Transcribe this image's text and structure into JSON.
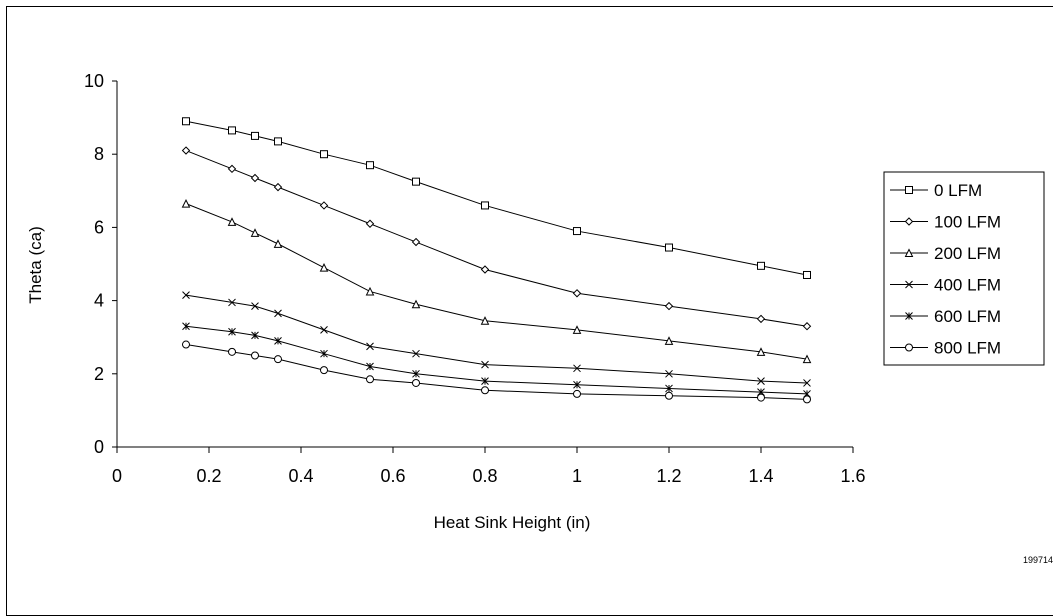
{
  "chart_data": {
    "type": "line",
    "xlabel": "Heat Sink Height (in)",
    "ylabel": "Theta (ca)",
    "xlim": [
      0,
      1.6
    ],
    "ylim": [
      0,
      10
    ],
    "x_ticks": [
      "0",
      "0.2",
      "0.4",
      "0.6",
      "0.8",
      "1",
      "1.2",
      "1.4",
      "1.6"
    ],
    "y_ticks": [
      "0",
      "2",
      "4",
      "6",
      "8",
      "10"
    ],
    "grid": false,
    "legend_position": "right",
    "x": [
      0.15,
      0.25,
      0.3,
      0.35,
      0.45,
      0.55,
      0.65,
      0.8,
      1.0,
      1.2,
      1.4,
      1.5
    ],
    "series": [
      {
        "name": "0 LFM",
        "marker": "square",
        "values": [
          8.9,
          8.65,
          8.5,
          8.35,
          8.0,
          7.7,
          7.25,
          6.6,
          5.9,
          5.45,
          4.95,
          4.7
        ]
      },
      {
        "name": "100 LFM",
        "marker": "diamond",
        "values": [
          8.1,
          7.6,
          7.35,
          7.1,
          6.6,
          6.1,
          5.6,
          4.85,
          4.2,
          3.85,
          3.5,
          3.3
        ]
      },
      {
        "name": "200 LFM",
        "marker": "triangle",
        "values": [
          6.65,
          6.15,
          5.85,
          5.55,
          4.9,
          4.25,
          3.9,
          3.45,
          3.2,
          2.9,
          2.6,
          2.4
        ]
      },
      {
        "name": "400 LFM",
        "marker": "x",
        "values": [
          4.15,
          3.95,
          3.85,
          3.65,
          3.2,
          2.75,
          2.55,
          2.25,
          2.15,
          2.0,
          1.8,
          1.75
        ]
      },
      {
        "name": "600 LFM",
        "marker": "star",
        "values": [
          3.3,
          3.15,
          3.05,
          2.9,
          2.55,
          2.2,
          2.0,
          1.8,
          1.7,
          1.6,
          1.5,
          1.45
        ]
      },
      {
        "name": "800 LFM",
        "marker": "circle",
        "values": [
          2.8,
          2.6,
          2.5,
          2.4,
          2.1,
          1.85,
          1.75,
          1.55,
          1.45,
          1.4,
          1.35,
          1.3
        ]
      }
    ]
  },
  "figure_id": "199714"
}
